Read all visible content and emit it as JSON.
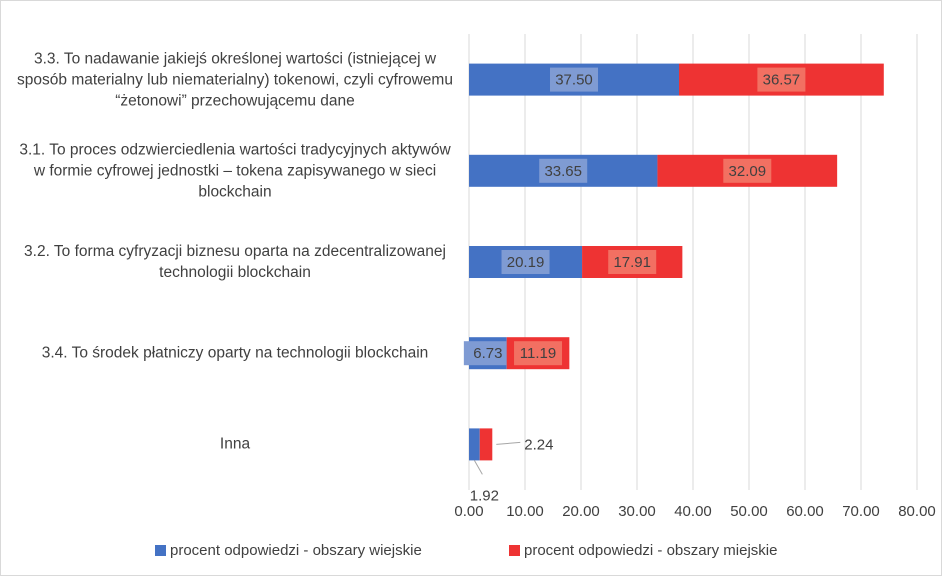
{
  "chart_data": {
    "type": "stacked_barh",
    "categories": [
      "3.3. To nadawanie jakiejś określonej wartości (istniejącej w sposób materialny lub niematerialny) tokenowi, czyli cyfrowemu “żetonowi” przechowującemu dane",
      "3.1. To proces odzwierciedlenia wartości tradycyjnych aktywów w formie cyfrowej jednostki – tokena zapisywanego w sieci blockchain",
      "3.2. To forma cyfryzacji biznesu oparta na zdecentralizowanej technologii blockchain",
      "3.4. To środek płatniczy oparty na technologii blockchain",
      "Inna"
    ],
    "series": [
      {
        "name": "procent odpowiedzi - obszary wiejskie",
        "color": "#4472c4",
        "label_bg": "#7f9bd3",
        "values": [
          37.5,
          33.65,
          20.19,
          6.73,
          1.92
        ],
        "value_labels": [
          "37.50",
          "33.65",
          "20.19",
          "6.73",
          "1.92"
        ]
      },
      {
        "name": "procent odpowiedzi - obszary miejskie",
        "color": "#ee3333",
        "label_bg": "#f27062",
        "values": [
          36.57,
          32.09,
          17.91,
          11.19,
          2.24
        ],
        "value_labels": [
          "36.57",
          "32.09",
          "17.91",
          "11.19",
          "2.24"
        ]
      }
    ],
    "xlim": [
      0,
      80
    ],
    "xticks": [
      {
        "value": 0,
        "label": "0.00"
      },
      {
        "value": 10,
        "label": "10.00"
      },
      {
        "value": 20,
        "label": "20.00"
      },
      {
        "value": 30,
        "label": "30.00"
      },
      {
        "value": 40,
        "label": "40.00"
      },
      {
        "value": 50,
        "label": "50.00"
      },
      {
        "value": 60,
        "label": "60.00"
      },
      {
        "value": 70,
        "label": "70.00"
      },
      {
        "value": 80,
        "label": "80.00"
      }
    ],
    "grid": true,
    "legend": "bottom"
  }
}
